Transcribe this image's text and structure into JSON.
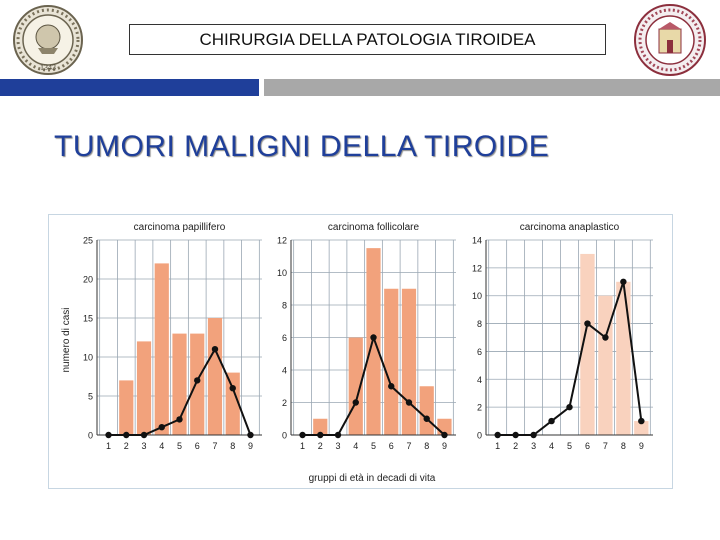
{
  "header": {
    "title": "CHIRURGIA DELLA PATOLOGIA TIROIDEA"
  },
  "slide": {
    "title": "TUMORI MALIGNI DELLA TIROIDE"
  },
  "logos": {
    "left": {
      "name": "university-seal-left",
      "year": "1343"
    },
    "right": {
      "name": "university-seal-right"
    }
  },
  "colors": {
    "accent_blue": "#1f3f9a",
    "accent_gray": "#a8a8a8",
    "title_color": "#1f3f9a",
    "bar_orange": "#f2a27c",
    "bar_light": "#f9d2be",
    "line": "#111111"
  },
  "figure": {
    "ylabel": "numero di casi",
    "xlabel": "gruppi di età in decadi di vita"
  },
  "chart_data": [
    {
      "type": "bar",
      "title": "carcinoma papillifero",
      "categories": [
        "1",
        "2",
        "3",
        "4",
        "5",
        "6",
        "7",
        "8",
        "9"
      ],
      "ylim": [
        0,
        25
      ],
      "yticks": [
        0,
        5,
        10,
        15,
        20,
        25
      ],
      "grid": true,
      "series": [
        {
          "kind": "bar",
          "values": [
            0,
            7,
            12,
            22,
            13,
            13,
            15,
            8,
            0
          ]
        },
        {
          "kind": "line",
          "values": [
            0,
            0,
            0,
            1,
            2,
            7,
            11,
            6,
            0
          ]
        }
      ]
    },
    {
      "type": "bar",
      "title": "carcinoma follicolare",
      "categories": [
        "1",
        "2",
        "3",
        "4",
        "5",
        "6",
        "7",
        "8",
        "9"
      ],
      "ylim": [
        0,
        12
      ],
      "yticks": [
        0,
        2,
        4,
        6,
        8,
        10,
        12
      ],
      "grid": true,
      "series": [
        {
          "kind": "bar",
          "values": [
            0,
            1,
            0,
            6,
            11.5,
            9,
            9,
            3,
            1
          ]
        },
        {
          "kind": "line",
          "values": [
            0,
            0,
            0,
            2,
            6,
            3,
            2,
            1,
            0
          ]
        }
      ]
    },
    {
      "type": "bar",
      "title": "carcinoma anaplastico",
      "categories": [
        "1",
        "2",
        "3",
        "4",
        "5",
        "6",
        "7",
        "8",
        "9"
      ],
      "ylim": [
        0,
        14
      ],
      "yticks": [
        0,
        2,
        4,
        6,
        8,
        10,
        12,
        14
      ],
      "grid": true,
      "series": [
        {
          "kind": "bar",
          "values": [
            0,
            0,
            0,
            0,
            0,
            13,
            10,
            11,
            1
          ]
        },
        {
          "kind": "line",
          "values": [
            0,
            0,
            0,
            1,
            2,
            8,
            7,
            11,
            1
          ]
        }
      ]
    }
  ]
}
